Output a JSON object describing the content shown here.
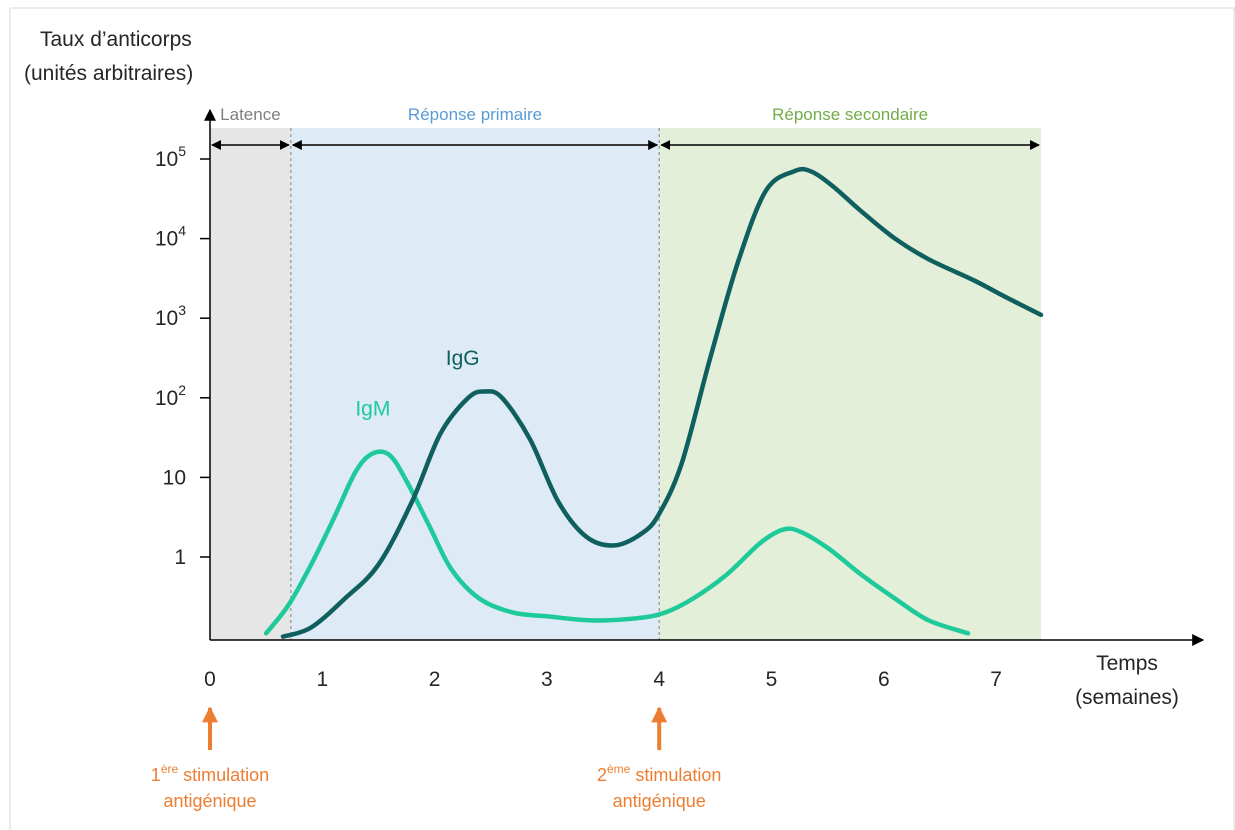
{
  "chart_data": {
    "type": "line",
    "title": "",
    "ylabel": [
      "Taux d’anticorps",
      "(unités arbitraires)"
    ],
    "xlabel": [
      "Temps",
      "(semaines)"
    ],
    "y_scale": "log",
    "ylim": [
      0.1,
      100000
    ],
    "xlim": [
      0,
      7.5
    ],
    "x_ticks": [
      0,
      1,
      2,
      3,
      4,
      5,
      6,
      7
    ],
    "x_tick_labels": [
      "0",
      "1",
      "2",
      "3",
      "4",
      "5",
      "6",
      "7"
    ],
    "y_ticks": [
      {
        "value": 1,
        "base": "1",
        "exp": ""
      },
      {
        "value": 10,
        "base": "10",
        "exp": ""
      },
      {
        "value": 100,
        "base": "10",
        "exp": "2"
      },
      {
        "value": 1000,
        "base": "10",
        "exp": "3"
      },
      {
        "value": 10000,
        "base": "10",
        "exp": "4"
      },
      {
        "value": 100000,
        "base": "10",
        "exp": "5"
      }
    ],
    "phases": [
      {
        "name": "Latence",
        "start": 0,
        "end": 0.72,
        "color": "#e6e6e6",
        "text_color": "#7f7f7f"
      },
      {
        "name": "Réponse primaire",
        "start": 0.72,
        "end": 4.0,
        "color": "#deeaf5",
        "text_color": "#5b9bd5"
      },
      {
        "name": "Réponse secondaire",
        "start": 4.0,
        "end": 7.4,
        "color": "#e3efd9",
        "text_color": "#70ad47"
      }
    ],
    "series": [
      {
        "name": "IgM",
        "color": "#1ec99a",
        "label_at": [
          1.45,
          60
        ],
        "x": [
          0.5,
          0.7,
          0.9,
          1.1,
          1.3,
          1.45,
          1.6,
          1.75,
          1.95,
          2.15,
          2.4,
          2.7,
          3.0,
          3.4,
          3.8,
          4.05,
          4.3,
          4.6,
          4.9,
          5.1,
          5.25,
          5.5,
          5.8,
          6.1,
          6.4,
          6.75
        ],
        "y": [
          0.11,
          0.25,
          0.8,
          3,
          12,
          20,
          19,
          9,
          2.5,
          0.7,
          0.3,
          0.2,
          0.18,
          0.16,
          0.17,
          0.2,
          0.3,
          0.6,
          1.5,
          2.2,
          2.1,
          1.3,
          0.6,
          0.3,
          0.16,
          0.11
        ],
        "stroke_width": 4.5
      },
      {
        "name": "IgG",
        "color": "#0f5f5f",
        "label_at": [
          2.25,
          260
        ],
        "x": [
          0.65,
          0.9,
          1.2,
          1.5,
          1.8,
          2.05,
          2.3,
          2.45,
          2.6,
          2.85,
          3.1,
          3.35,
          3.6,
          3.85,
          4.0,
          4.2,
          4.45,
          4.7,
          4.95,
          5.2,
          5.35,
          5.55,
          5.8,
          6.1,
          6.4,
          6.8,
          7.1,
          7.4
        ],
        "y": [
          0.1,
          0.13,
          0.3,
          0.8,
          5,
          35,
          100,
          120,
          100,
          30,
          5,
          1.8,
          1.4,
          2,
          3.5,
          15,
          300,
          5000,
          40000,
          70000,
          70000,
          45000,
          22000,
          10000,
          5500,
          3000,
          1800,
          1100
        ],
        "stroke_width": 4.5
      }
    ],
    "stimulations": [
      {
        "x": 0,
        "line1_base": "1",
        "line1_sup": "ère",
        "line1_rest": " stimulation",
        "line2": "antigénique"
      },
      {
        "x": 4,
        "line1_base": "2",
        "line1_sup": "ème",
        "line1_rest": " stimulation",
        "line2": "antigénique"
      }
    ],
    "colors": {
      "axis": "#000000",
      "text": "#262626",
      "stimulation": "#ed7d31",
      "divider": "#7f7f7f"
    }
  }
}
